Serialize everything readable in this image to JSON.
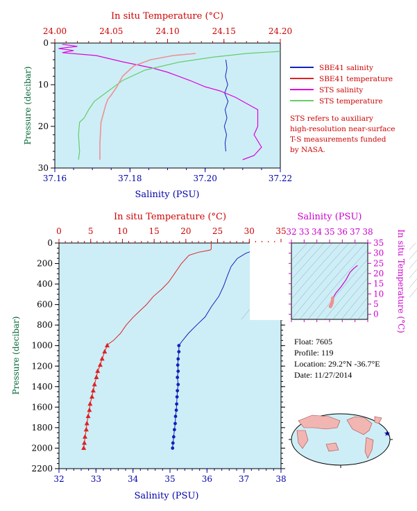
{
  "colors": {
    "plot_bg": "#cdeef7",
    "sbe_salinity": "#1122bb",
    "sbe_temperature": "#dd2222",
    "sts_salinity": "#dd00dd",
    "sts_temperature": "#66cc66",
    "sts_temperature_pink": "#f09090",
    "red_axis": "#cc0000",
    "blue_axis": "#0000aa",
    "green_axis": "#006633",
    "magenta_axis": "#cc00cc"
  },
  "legend": {
    "sbe_salinity": "SBE41 salinity",
    "sbe_temperature": "SBE41 temperature",
    "sts_salinity": "STS salinity",
    "sts_temperature": "STS temperature"
  },
  "note": {
    "line1": "STS refers to auxiliary",
    "line2": "high-resolution near-surface",
    "line3": "T-S measurements funded",
    "line4": "by NASA."
  },
  "info": {
    "float": "Float:  7605",
    "profile": "Profile:  119",
    "location": "Location:  29.2°N  -36.7°E",
    "date": "Date:  11/27/2014"
  },
  "chart_data": [
    {
      "type": "line",
      "top_xlabel": "In situ Temperature (°C)",
      "bottom_xlabel": "Salinity (PSU)",
      "ylabel": "Pressure (decibar)",
      "top_xlim": [
        24.0,
        24.2
      ],
      "top_xticks": [
        "24.00",
        "24.05",
        "24.10",
        "24.15",
        "24.20"
      ],
      "bottom_xlim": [
        37.16,
        37.22
      ],
      "bottom_xticks": [
        "37.16",
        "37.18",
        "37.20",
        "37.22"
      ],
      "ylim": [
        30,
        0
      ],
      "yticks": [
        "0",
        "10",
        "20",
        "30"
      ],
      "series": [
        {
          "name": "SBE41 salinity",
          "axis": "bottom",
          "points": [
            [
              37.2055,
              4
            ],
            [
              37.2058,
              6
            ],
            [
              37.2054,
              8
            ],
            [
              37.206,
              10
            ],
            [
              37.2052,
              12
            ],
            [
              37.2061,
              14
            ],
            [
              37.2053,
              16
            ],
            [
              37.2058,
              18
            ],
            [
              37.2051,
              20
            ],
            [
              37.2057,
              22
            ],
            [
              37.2053,
              24
            ],
            [
              37.2055,
              26
            ]
          ]
        },
        {
          "name": "SBE41 temperature",
          "axis": "top",
          "points": []
        },
        {
          "name": "STS salinity",
          "axis": "bottom",
          "points": [
            [
              37.162,
              0.3
            ],
            [
              37.166,
              0.8
            ],
            [
              37.161,
              1.3
            ],
            [
              37.165,
              1.8
            ],
            [
              37.162,
              2.3
            ],
            [
              37.171,
              3
            ],
            [
              37.178,
              4.5
            ],
            [
              37.186,
              6
            ],
            [
              37.19,
              7
            ],
            [
              37.196,
              9
            ],
            [
              37.2,
              10.5
            ],
            [
              37.204,
              11.5
            ],
            [
              37.208,
              13
            ],
            [
              37.212,
              15
            ],
            [
              37.214,
              16
            ],
            [
              37.214,
              20
            ],
            [
              37.213,
              22
            ],
            [
              37.215,
              25
            ],
            [
              37.213,
              27
            ],
            [
              37.21,
              28
            ]
          ]
        },
        {
          "name": "STS temperature",
          "axis": "top",
          "points": [
            [
              24.2,
              2
            ],
            [
              24.17,
              2.5
            ],
            [
              24.14,
              3.4
            ],
            [
              24.11,
              4.6
            ],
            [
              24.08,
              6.5
            ],
            [
              24.06,
              9
            ],
            [
              24.045,
              12
            ],
            [
              24.035,
              14
            ],
            [
              24.03,
              16
            ],
            [
              24.026,
              18
            ],
            [
              24.022,
              19
            ],
            [
              24.021,
              22
            ],
            [
              24.022,
              26
            ],
            [
              24.021,
              28
            ]
          ]
        },
        {
          "name": "STS temperature (pink)",
          "axis": "top",
          "points": [
            [
              24.125,
              2.5
            ],
            [
              24.105,
              3
            ],
            [
              24.085,
              4
            ],
            [
              24.07,
              5.5
            ],
            [
              24.06,
              8
            ],
            [
              24.055,
              10.5
            ],
            [
              24.05,
              12.5
            ],
            [
              24.047,
              13.5
            ],
            [
              24.045,
              15
            ],
            [
              24.043,
              17
            ],
            [
              24.041,
              19
            ],
            [
              24.04,
              24
            ],
            [
              24.04,
              28
            ]
          ]
        }
      ]
    },
    {
      "type": "line",
      "top_xlabel": "In situ Temperature (°C)",
      "bottom_xlabel": "Salinity (PSU)",
      "ylabel": "Pressure (decibar)",
      "top_xlim": [
        0,
        35
      ],
      "top_xticks": [
        "0",
        "5",
        "10",
        "15",
        "20",
        "25",
        "30",
        "35"
      ],
      "bottom_xlim": [
        32,
        38
      ],
      "bottom_xticks": [
        "32",
        "33",
        "34",
        "35",
        "36",
        "37",
        "38"
      ],
      "ylim": [
        2200,
        0
      ],
      "yticks": [
        "0",
        "200",
        "400",
        "600",
        "800",
        "1000",
        "1200",
        "1400",
        "1600",
        "1800",
        "2000",
        "2200"
      ],
      "series": [
        {
          "name": "Temperature",
          "axis": "top",
          "points": [
            [
              24.0,
              0
            ],
            [
              24.0,
              60
            ],
            [
              23.8,
              70
            ],
            [
              22.0,
              90
            ],
            [
              20.5,
              120
            ],
            [
              19.3,
              200
            ],
            [
              18.2,
              300
            ],
            [
              17.3,
              380
            ],
            [
              16.2,
              450
            ],
            [
              14.9,
              520
            ],
            [
              13.8,
              600
            ],
            [
              12.6,
              670
            ],
            [
              11.6,
              730
            ],
            [
              10.6,
              800
            ],
            [
              9.7,
              880
            ],
            [
              8.6,
              950
            ],
            [
              7.8,
              985
            ],
            [
              7.6,
              1000
            ],
            [
              7.2,
              1060
            ],
            [
              6.8,
              1130
            ],
            [
              6.5,
              1190
            ],
            [
              6.1,
              1250
            ],
            [
              5.9,
              1310
            ],
            [
              5.6,
              1380
            ],
            [
              5.4,
              1440
            ],
            [
              5.2,
              1500
            ],
            [
              4.9,
              1570
            ],
            [
              4.8,
              1630
            ],
            [
              4.6,
              1690
            ],
            [
              4.4,
              1760
            ],
            [
              4.3,
              1820
            ],
            [
              4.1,
              1890
            ],
            [
              4.0,
              1950
            ],
            [
              3.9,
              2000
            ]
          ]
        },
        {
          "name": "Salinity",
          "axis": "bottom",
          "points": [
            [
              37.2,
              0
            ],
            [
              37.2,
              80
            ],
            [
              37.05,
              100
            ],
            [
              36.82,
              150
            ],
            [
              36.65,
              230
            ],
            [
              36.55,
              320
            ],
            [
              36.45,
              420
            ],
            [
              36.32,
              520
            ],
            [
              36.12,
              620
            ],
            [
              35.95,
              720
            ],
            [
              35.72,
              800
            ],
            [
              35.5,
              880
            ],
            [
              35.32,
              960
            ],
            [
              35.24,
              1000
            ],
            [
              35.24,
              1060
            ],
            [
              35.22,
              1130
            ],
            [
              35.21,
              1190
            ],
            [
              35.22,
              1250
            ],
            [
              35.2,
              1310
            ],
            [
              35.22,
              1380
            ],
            [
              35.2,
              1440
            ],
            [
              35.19,
              1500
            ],
            [
              35.18,
              1570
            ],
            [
              35.17,
              1630
            ],
            [
              35.15,
              1690
            ],
            [
              35.14,
              1760
            ],
            [
              35.12,
              1820
            ],
            [
              35.1,
              1890
            ],
            [
              35.08,
              1950
            ],
            [
              35.07,
              2000
            ]
          ]
        }
      ]
    },
    {
      "type": "scatter",
      "top_xlabel": "Salinity (PSU)",
      "ylabel": "In situ Temperature (°C)",
      "xlim": [
        32,
        38
      ],
      "xticks": [
        "32",
        "33",
        "34",
        "35",
        "36",
        "37",
        "38"
      ],
      "ylim": [
        -5,
        35
      ],
      "yticks": [
        "0",
        "5",
        "10",
        "15",
        "20",
        "25",
        "30",
        "35"
      ],
      "series": [
        {
          "name": "T-S curve",
          "points": [
            [
              35.07,
              3.9
            ],
            [
              35.12,
              4.5
            ],
            [
              35.18,
              5.4
            ],
            [
              35.22,
              6.5
            ],
            [
              35.24,
              7.8
            ],
            [
              35.5,
              10.5
            ],
            [
              35.9,
              13.5
            ],
            [
              36.3,
              17.0
            ],
            [
              36.6,
              20.5
            ],
            [
              36.9,
              22.5
            ],
            [
              37.2,
              24.0
            ]
          ]
        }
      ]
    }
  ],
  "map": {
    "marker": "★"
  }
}
